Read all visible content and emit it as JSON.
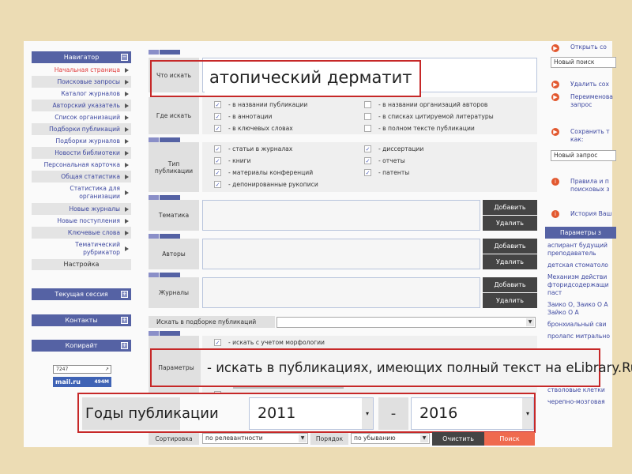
{
  "navigator": {
    "title": "Навигатор",
    "items": [
      {
        "label": "Начальная страница",
        "active": true
      },
      {
        "label": "Поисковые запросы"
      },
      {
        "label": "Каталог журналов"
      },
      {
        "label": "Авторский указатель"
      },
      {
        "label": "Список организаций"
      },
      {
        "label": "Подборки публикаций"
      },
      {
        "label": "Подборки журналов"
      },
      {
        "label": "Новости библиотеки"
      },
      {
        "label": "Персональная карточка"
      },
      {
        "label": "Общая статистика"
      },
      {
        "label": "Статистика для организации"
      },
      {
        "label": "Новые журналы"
      },
      {
        "label": "Новые поступления"
      },
      {
        "label": "Ключевые слова"
      },
      {
        "label": "Тематический рубрикатор"
      }
    ],
    "settings": "Настройка"
  },
  "panels": {
    "session": "Текущая сессия",
    "contacts": "Контакты",
    "copyright": "Копирайт"
  },
  "counter": {
    "value": "7247",
    "mail": "mail.ru",
    "mail_count": "494M"
  },
  "search": {
    "what_label": "Что искать",
    "query": "атопический дерматит",
    "where_label": "Где искать",
    "where": [
      {
        "label": "- в названии публикации",
        "checked": true
      },
      {
        "label": "- в аннотации",
        "checked": true
      },
      {
        "label": "- в ключевых словах",
        "checked": true
      },
      {
        "label": "- в названии организаций авторов",
        "checked": false
      },
      {
        "label": "- в списках цитируемой литературы",
        "checked": false
      },
      {
        "label": "- в полном тексте публикации",
        "checked": false
      }
    ],
    "type_label": "Тип публикации",
    "types": [
      {
        "label": "- статьи в журналах",
        "checked": true
      },
      {
        "label": "- книги",
        "checked": true
      },
      {
        "label": "- материалы конференций",
        "checked": true
      },
      {
        "label": "- депонированные рукописи",
        "checked": true
      },
      {
        "label": "- диссертации",
        "checked": true
      },
      {
        "label": "- отчеты",
        "checked": true
      },
      {
        "label": "- патенты",
        "checked": true
      }
    ],
    "topic_label": "Тематика",
    "authors_label": "Авторы",
    "journals_label": "Журналы",
    "add": "Добавить",
    "remove": "Удалить",
    "collection_label": "Искать в подборке публикаций",
    "collection_value": "",
    "params_label": "Параметры",
    "params": [
      {
        "label": "- искать с учетом морфологии",
        "checked": true
      },
      {
        "label": "- искать в публикациях, имеющих полный текст на eLibrary.Ru"
      }
    ],
    "years_label": "Годы публикации",
    "year_from": "2011",
    "year_sep": "-",
    "year_to": "2016",
    "sort_label": "Сортировка",
    "sort_value": "по релевантности",
    "order_label": "Порядок",
    "order_value": "по убыванию",
    "clear": "Очистить",
    "search": "Поиск"
  },
  "right": {
    "open_saved": "Открыть со",
    "open_select": "Новый поиск",
    "delete_saved": "Удалить сох",
    "rename": "Переименова запрос",
    "save_as": "Сохранить т как:",
    "save_input": "Новый запрос",
    "rules": "Правила и п поисковых з",
    "history": "История Ваш",
    "params_head": "Параметры з",
    "tags": [
      "аспирант будущий преподаватель",
      "детская стоматоло",
      "Механизм действи фторидсодержащи паст",
      "Заико О, Заико О А Зайко О А",
      "бронхиальный сви",
      "пролапс митрально",
      "стволовые клетки",
      "черепно-мозговая"
    ]
  },
  "colors": {
    "nav": "#5562a4",
    "highlight": "#c62828",
    "search_button": "#ef6a4f",
    "dark_button": "#444444",
    "background": "#ecdcb4"
  }
}
